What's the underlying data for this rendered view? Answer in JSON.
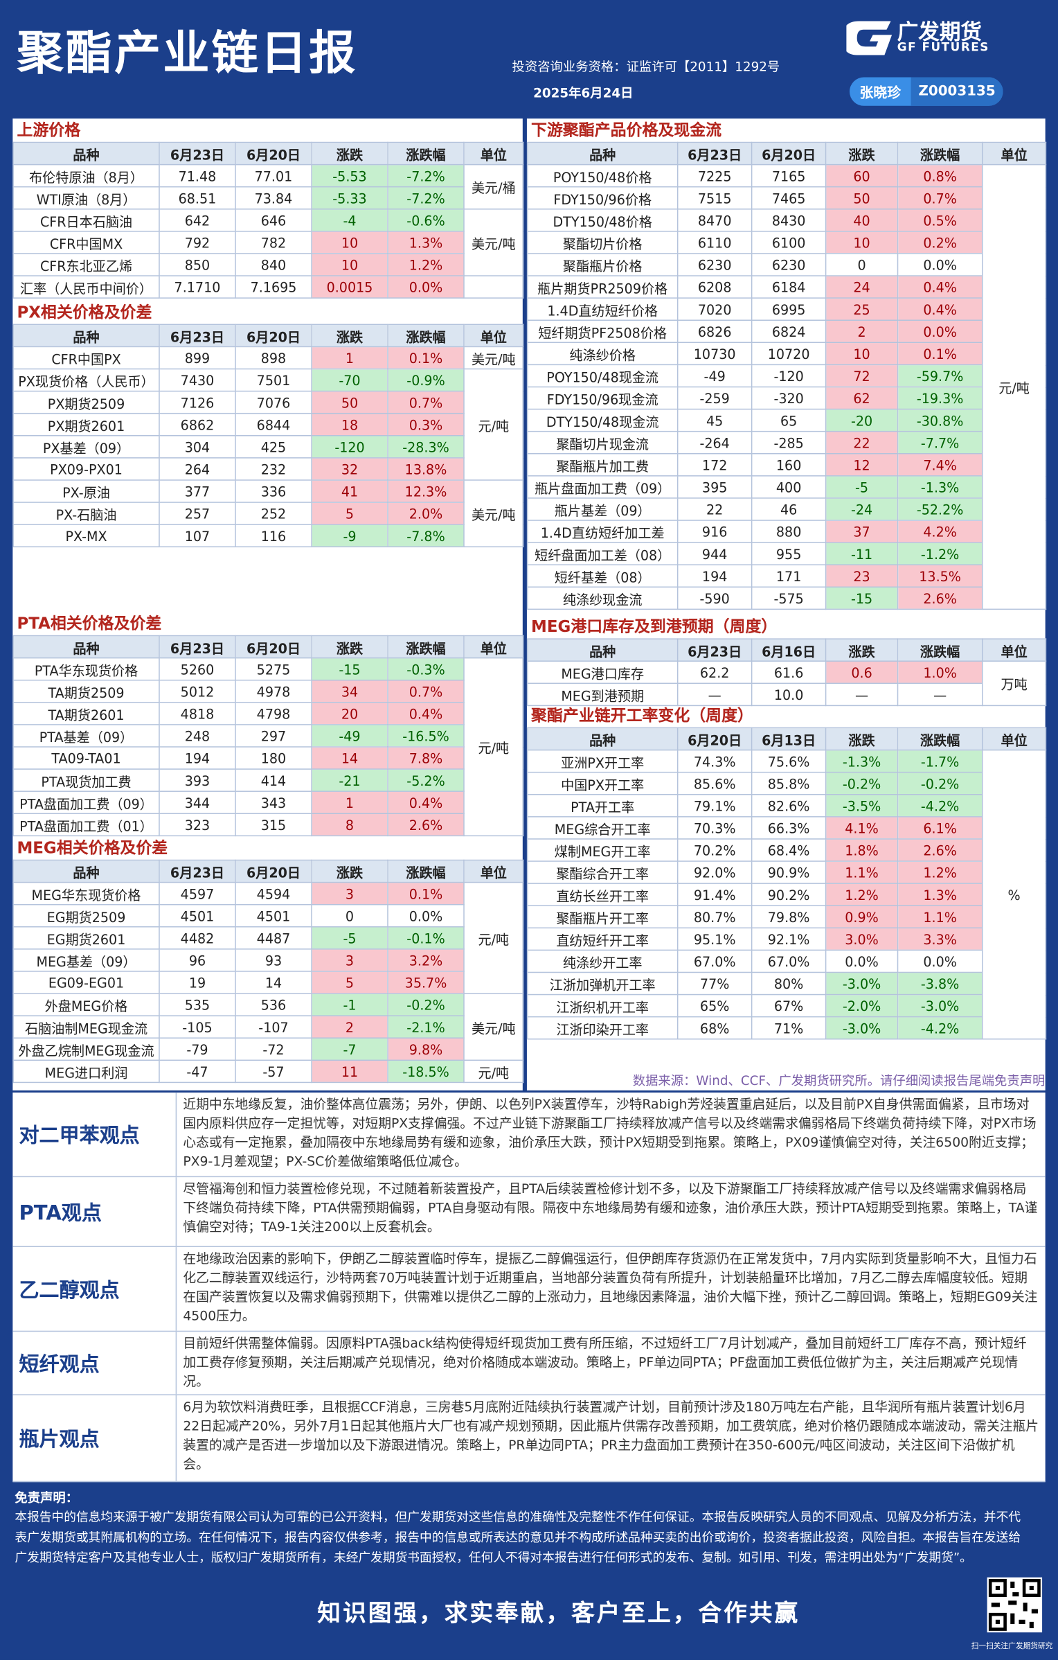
{
  "header": {
    "title": "聚酯产业链日报",
    "license": "投资咨询业务资格：证监许可【2011】1292号",
    "date": "2025年6月24日",
    "logo_cn": "广发期货",
    "logo_en": "GF FUTURES",
    "analyst": "张晓珍",
    "analyst_id": "Z0003135"
  },
  "left_sections": [
    {
      "title": "上游价格",
      "headers": [
        "品种",
        "6月23日",
        "6月20日",
        "涨跌",
        "涨跌幅",
        "单位"
      ],
      "rows": [
        [
          "布伦特原油（8月）",
          "71.48",
          "77.01",
          "-5.53",
          "-7.2%"
        ],
        [
          "WTI原油（8月）",
          "68.51",
          "73.84",
          "-5.33",
          "-7.2%"
        ],
        [
          "CFR日本石脑油",
          "642",
          "646",
          "-4",
          "-0.6%"
        ],
        [
          "CFR中国MX",
          "792",
          "782",
          "10",
          "1.3%"
        ],
        [
          "CFR东北亚乙烯",
          "850",
          "840",
          "10",
          "1.2%"
        ],
        [
          "汇率（人民币中间价）",
          "7.1710",
          "7.1695",
          "0.0015",
          "0.0%"
        ]
      ],
      "units": [
        {
          "label": "美元/桶",
          "rows": [
            0,
            1
          ]
        },
        {
          "label": "美元/吨",
          "rows": [
            2,
            3,
            4
          ]
        }
      ]
    },
    {
      "title": "PX相关价格及价差",
      "headers": [
        "品种",
        "6月23日",
        "6月20日",
        "涨跌",
        "涨跌幅",
        "单位"
      ],
      "rows": [
        [
          "CFR中国PX",
          "899",
          "898",
          "1",
          "0.1%"
        ],
        [
          "PX现货价格（人民币）",
          "7430",
          "7501",
          "-70",
          "-0.9%"
        ],
        [
          "PX期货2509",
          "7126",
          "7076",
          "50",
          "0.7%"
        ],
        [
          "PX期货2601",
          "6862",
          "6844",
          "18",
          "0.3%"
        ],
        [
          "PX基差（09）",
          "304",
          "425",
          "-120",
          "-28.3%"
        ],
        [
          "PX09-PX01",
          "264",
          "232",
          "32",
          "13.8%"
        ],
        [
          "PX-原油",
          "377",
          "336",
          "41",
          "12.3%"
        ],
        [
          "PX-石脑油",
          "257",
          "252",
          "5",
          "2.0%"
        ],
        [
          "PX-MX",
          "107",
          "116",
          "-9",
          "-7.8%"
        ]
      ],
      "units": [
        {
          "label": "美元/吨",
          "rows": [
            0
          ]
        },
        {
          "label": "元/吨",
          "rows": [
            1,
            2,
            3,
            4,
            5
          ]
        },
        {
          "label": "美元/吨",
          "rows": [
            6,
            7,
            8
          ]
        }
      ]
    },
    {
      "title": "PTA相关价格及价差",
      "headers": [
        "品种",
        "6月23日",
        "6月20日",
        "涨跌",
        "涨跌幅",
        "单位"
      ],
      "rows": [
        [
          "PTA华东现货价格",
          "5260",
          "5275",
          "-15",
          "-0.3%"
        ],
        [
          "TA期货2509",
          "5012",
          "4978",
          "34",
          "0.7%"
        ],
        [
          "TA期货2601",
          "4818",
          "4798",
          "20",
          "0.4%"
        ],
        [
          "PTA基差（09）",
          "248",
          "297",
          "-49",
          "-16.5%"
        ],
        [
          "TA09-TA01",
          "194",
          "180",
          "14",
          "7.8%"
        ],
        [
          "PTA现货加工费",
          "393",
          "414",
          "-21",
          "-5.2%"
        ],
        [
          "PTA盘面加工费（09）",
          "344",
          "343",
          "1",
          "0.4%"
        ],
        [
          "PTA盘面加工费（01）",
          "323",
          "315",
          "8",
          "2.6%"
        ]
      ],
      "units": [
        {
          "label": "元/吨",
          "rows": [
            0,
            1,
            2,
            3,
            4,
            5,
            6,
            7
          ]
        }
      ]
    },
    {
      "title": "MEG相关价格及价差",
      "headers": [
        "品种",
        "6月23日",
        "6月20日",
        "涨跌",
        "涨跌幅",
        "单位"
      ],
      "rows": [
        [
          "MEG华东现货价格",
          "4597",
          "4594",
          "3",
          "0.1%"
        ],
        [
          "EG期货2509",
          "4501",
          "4501",
          "0",
          "0.0%"
        ],
        [
          "EG期货2601",
          "4482",
          "4487",
          "-5",
          "-0.1%"
        ],
        [
          "MEG基差（09）",
          "96",
          "93",
          "3",
          "3.2%"
        ],
        [
          "EG09-EG01",
          "19",
          "14",
          "5",
          "35.7%"
        ],
        [
          "外盘MEG价格",
          "535",
          "536",
          "-1",
          "-0.2%"
        ],
        [
          "石脑油制MEG现金流",
          "-105",
          "-107",
          "2",
          "-2.1%"
        ],
        [
          "外盘乙烷制MEG现金流",
          "-79",
          "-72",
          "-7",
          "9.8%"
        ],
        [
          "MEG进口利润",
          "-47",
          "-57",
          "11",
          "-18.5%"
        ]
      ],
      "units": [
        {
          "label": "元/吨",
          "rows": [
            0,
            1,
            2,
            3,
            4
          ]
        },
        {
          "label": "美元/吨",
          "rows": [
            5,
            6,
            7
          ]
        },
        {
          "label": "元/吨",
          "rows": [
            8
          ]
        }
      ]
    }
  ],
  "right_sections": [
    {
      "title": "下游聚酯产品价格及现金流",
      "headers": [
        "品种",
        "6月23日",
        "6月20日",
        "涨跌",
        "涨跌幅",
        "单位"
      ],
      "rows": [
        [
          "POY150/48价格",
          "7225",
          "7165",
          "60",
          "0.8%"
        ],
        [
          "FDY150/96价格",
          "7515",
          "7465",
          "50",
          "0.7%"
        ],
        [
          "DTY150/48价格",
          "8470",
          "8430",
          "40",
          "0.5%"
        ],
        [
          "聚酯切片价格",
          "6110",
          "6100",
          "10",
          "0.2%"
        ],
        [
          "聚酯瓶片价格",
          "6230",
          "6230",
          "0",
          "0.0%"
        ],
        [
          "瓶片期货PR2509价格",
          "6208",
          "6184",
          "24",
          "0.4%"
        ],
        [
          "1.4D直纺短纤价格",
          "7020",
          "6995",
          "25",
          "0.4%"
        ],
        [
          "短纤期货PF2508价格",
          "6826",
          "6824",
          "2",
          "0.0%"
        ],
        [
          "纯涤纱价格",
          "10730",
          "10720",
          "10",
          "0.1%"
        ],
        [
          "POY150/48现金流",
          "-49",
          "-120",
          "72",
          "-59.7%"
        ],
        [
          "FDY150/96现金流",
          "-259",
          "-320",
          "62",
          "-19.3%"
        ],
        [
          "DTY150/48现金流",
          "45",
          "65",
          "-20",
          "-30.8%"
        ],
        [
          "聚酯切片现金流",
          "-264",
          "-285",
          "22",
          "-7.7%"
        ],
        [
          "聚酯瓶片加工费",
          "172",
          "160",
          "12",
          "7.4%"
        ],
        [
          "瓶片盘面加工费（09）",
          "395",
          "400",
          "-5",
          "-1.3%"
        ],
        [
          "瓶片基差（09）",
          "22",
          "46",
          "-24",
          "-52.2%"
        ],
        [
          "1.4D直纺短纤加工差",
          "916",
          "880",
          "37",
          "4.2%"
        ],
        [
          "短纤盘面加工差（08）",
          "944",
          "955",
          "-11",
          "-1.2%"
        ],
        [
          "短纤基差（08）",
          "194",
          "171",
          "23",
          "13.5%"
        ],
        [
          "纯涤纱现金流",
          "-590",
          "-575",
          "-15",
          "2.6%"
        ]
      ],
      "units": [
        {
          "label": "元/吨",
          "rows": [
            0,
            1,
            2,
            3,
            4,
            5,
            6,
            7,
            8,
            9,
            10,
            11,
            12,
            13,
            14,
            15,
            16,
            17,
            18,
            19
          ]
        }
      ]
    },
    {
      "title": "MEG港口库存及到港预期（周度）",
      "headers": [
        "品种",
        "6月23日",
        "6月16日",
        "涨跌",
        "涨跌幅",
        "单位"
      ],
      "rows": [
        [
          "MEG港口库存",
          "62.2",
          "61.6",
          "0.6",
          "1.0%"
        ],
        [
          "MEG到港预期",
          "—",
          "10.0",
          "—",
          "—"
        ]
      ],
      "units": [
        {
          "label": "万吨",
          "rows": [
            0,
            1
          ]
        }
      ]
    },
    {
      "title": "聚酯产业链开工率变化（周度）",
      "headers": [
        "品种",
        "6月20日",
        "6月13日",
        "涨跌",
        "涨跌幅",
        "单位"
      ],
      "rows": [
        [
          "亚洲PX开工率",
          "74.3%",
          "75.6%",
          "-1.3%",
          "-1.7%"
        ],
        [
          "中国PX开工率",
          "85.6%",
          "85.8%",
          "-0.2%",
          "-0.2%"
        ],
        [
          "PTA开工率",
          "79.1%",
          "82.6%",
          "-3.5%",
          "-4.2%"
        ],
        [
          "MEG综合开工率",
          "70.3%",
          "66.3%",
          "4.1%",
          "6.1%"
        ],
        [
          "煤制MEG开工率",
          "70.2%",
          "68.4%",
          "1.8%",
          "2.6%"
        ],
        [
          "聚酯综合开工率",
          "92.0%",
          "90.9%",
          "1.1%",
          "1.2%"
        ],
        [
          "直纺长丝开工率",
          "91.4%",
          "90.2%",
          "1.2%",
          "1.3%"
        ],
        [
          "聚酯瓶片开工率",
          "80.7%",
          "79.8%",
          "0.9%",
          "1.1%"
        ],
        [
          "直纺短纤开工率",
          "95.1%",
          "92.1%",
          "3.0%",
          "3.3%"
        ],
        [
          "纯涤纱开工率",
          "67.0%",
          "67.0%",
          "0.0%",
          "0.0%"
        ],
        [
          "江浙加弹机开工率",
          "77%",
          "80%",
          "-3.0%",
          "-3.8%"
        ],
        [
          "江浙织机开工率",
          "65%",
          "67%",
          "-2.0%",
          "-3.0%"
        ],
        [
          "江浙印染开工率",
          "68%",
          "71%",
          "-3.0%",
          "-4.2%"
        ]
      ],
      "units": [
        {
          "label": "%",
          "rows": [
            0,
            1,
            2,
            3,
            4,
            5,
            6,
            7,
            8,
            9,
            10,
            11,
            12
          ]
        }
      ]
    }
  ],
  "source_note": "数据来源：Wind、CCF、广发期货研究所。请仔细阅读报告尾端免责声明",
  "views": [
    {
      "label": "对二甲苯观点",
      "text": "近期中东地缘反复，油价整体高位震荡；另外，伊朗、以色列PX装置停车，沙特Rabigh芳烃装置重启延后，以及目前PX自身供需面偏紧，且市场对国内原料供应存一定担忧等，对短期PX支撑偏强。不过产业链下游聚酯工厂持续释放减产信号以及终端需求偏弱格局下终端负荷持续下降，对PX市场心态或有一定拖累，叠加隔夜中东地缘局势有缓和迹象，油价承压大跌，预计PX短期受到拖累。策略上，PX09谨慎偏空对待，关注6500附近支撑；PX9-1月差观望；PX-SC价差做缩策略低位减仓。"
    },
    {
      "label": "PTA观点",
      "text": "尽管福海创和恒力装置检修兑现，不过随着新装置投产，且PTA后续装置检修计划不多，以及下游聚酯工厂持续释放减产信号以及终端需求偏弱格局下终端负荷持续下降，PTA供需预期偏弱，PTA自身驱动有限。隔夜中东地缘局势有缓和迹象，油价承压大跌，预计PTA短期受到拖累。策略上，TA谨慎偏空对待；TA9-1关注200以上反套机会。"
    },
    {
      "label": "乙二醇观点",
      "text": "在地缘政治因素的影响下，伊朗乙二醇装置临时停车，提振乙二醇偏强运行，但伊朗库存货源仍在正常发货中，7月内实际到货量影响不大，且恒力石化乙二醇装置双线运行，沙特两套70万吨装置计划于近期重启，当地部分装置负荷有所提升，计划装船量环比增加，7月乙二醇去库幅度较低。短期在国产装置恢复以及需求偏弱预期下，供需难以提供乙二醇的上涨动力，且地缘因素降温，油价大幅下挫，预计乙二醇回调。策略上，短期EG09关注4500压力。"
    },
    {
      "label": "短纤观点",
      "text": "目前短纤供需整体偏弱。因原料PTA强back结构使得短纤现货加工费有所压缩，不过短纤工厂7月计划减产，叠加目前短纤工厂库存不高，预计短纤加工费存修复预期，关注后期减产兑现情况，绝对价格随成本端波动。策略上，PF单边同PTA；PF盘面加工费低位做扩为主，关注后期减产兑现情况。"
    },
    {
      "label": "瓶片观点",
      "text": "6月为软饮料消费旺季，且根据CCF消息，三房巷5月底附近陆续执行装置减产计划，目前预计涉及180万吨左右产能，且华润所有瓶片装置计划6月22日起减产20%，另外7月1日起其他瓶片大厂也有减产规划预期，因此瓶片供需存改善预期，加工费筑底，绝对价格仍跟随成本端波动，需关注瓶片装置的减产是否进一步增加以及下游跟进情况。策略上，PR单边同PTA；PR主力盘面加工费预计在350-600元/吨区间波动，关注区间下沿做扩机会。"
    }
  ],
  "disclaimer": {
    "title": "免责声明：",
    "text": "本报告中的信息均来源于被广发期货有限公司认为可靠的已公开资料，但广发期货对这些信息的准确性及完整性不作任何保证。本报告反映研究人员的不同观点、见解及分析方法，并不代表广发期货或其附属机构的立场。在任何情况下，报告内容仅供参考，报告中的信息或所表达的意见并不构成所述品种买卖的出价或询价，投资者据此投资，风险自担。本报告旨在发送给广发期货特定客户及其他专业人士，版权归广发期货所有，未经广发期货书面授权，任何人不得对本报告进行任何形式的发布、复制。如引用、刊发，需注明出处为“广发期货”。"
  },
  "footer": {
    "slogan": "知识图强，求实奉献，客户至上，合作共赢",
    "qr_caption": "扫一扫关注广发期货研究"
  }
}
